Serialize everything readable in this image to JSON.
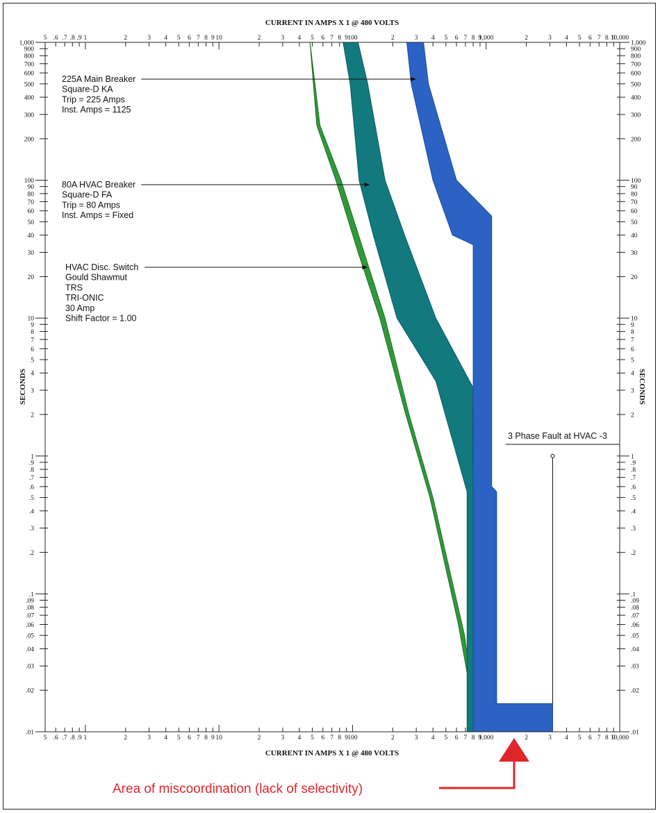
{
  "chart_data": {
    "type": "area",
    "x_axis_title": "CURRENT IN AMPS X 1 @ 480 VOLTS",
    "y_axis_title": "SECONDS",
    "x_scale": "log",
    "y_scale": "log",
    "xlim": [
      0.5,
      10000
    ],
    "ylim": [
      0.01,
      1000
    ],
    "x_tick_labels": [
      {
        "v": 0.5,
        "t": "5"
      },
      {
        "v": 0.6,
        "t": ".6"
      },
      {
        "v": 0.7,
        "t": ".7"
      },
      {
        "v": 0.8,
        "t": ".8"
      },
      {
        "v": 0.9,
        "t": ".9"
      },
      {
        "v": 1,
        "t": "1"
      },
      {
        "v": 2,
        "t": "2"
      },
      {
        "v": 3,
        "t": "3"
      },
      {
        "v": 4,
        "t": "4"
      },
      {
        "v": 5,
        "t": "5"
      },
      {
        "v": 6,
        "t": "6"
      },
      {
        "v": 7,
        "t": "7"
      },
      {
        "v": 8,
        "t": "8"
      },
      {
        "v": 9,
        "t": "9"
      },
      {
        "v": 10,
        "t": "10"
      },
      {
        "v": 20,
        "t": "2"
      },
      {
        "v": 30,
        "t": "3"
      },
      {
        "v": 40,
        "t": "4"
      },
      {
        "v": 50,
        "t": "5"
      },
      {
        "v": 60,
        "t": "6"
      },
      {
        "v": 70,
        "t": "7"
      },
      {
        "v": 80,
        "t": "8"
      },
      {
        "v": 90,
        "t": "9"
      },
      {
        "v": 100,
        "t": "100"
      },
      {
        "v": 200,
        "t": "2"
      },
      {
        "v": 300,
        "t": "3"
      },
      {
        "v": 400,
        "t": "4"
      },
      {
        "v": 500,
        "t": "5"
      },
      {
        "v": 600,
        "t": "6"
      },
      {
        "v": 700,
        "t": "7"
      },
      {
        "v": 800,
        "t": "8"
      },
      {
        "v": 900,
        "t": "9"
      },
      {
        "v": 1000,
        "t": "1,000"
      },
      {
        "v": 2000,
        "t": "2"
      },
      {
        "v": 3000,
        "t": "3"
      },
      {
        "v": 4000,
        "t": "4"
      },
      {
        "v": 5000,
        "t": "5"
      },
      {
        "v": 6000,
        "t": "6"
      },
      {
        "v": 7000,
        "t": "7"
      },
      {
        "v": 8000,
        "t": "8"
      },
      {
        "v": 9000,
        "t": "9"
      },
      {
        "v": 10000,
        "t": "10,000"
      }
    ],
    "y_tick_labels": [
      {
        "v": 1000,
        "t": "1,000"
      },
      {
        "v": 900,
        "t": "900"
      },
      {
        "v": 800,
        "t": "800"
      },
      {
        "v": 700,
        "t": "700"
      },
      {
        "v": 600,
        "t": "600"
      },
      {
        "v": 500,
        "t": "500"
      },
      {
        "v": 400,
        "t": "400"
      },
      {
        "v": 300,
        "t": "300"
      },
      {
        "v": 200,
        "t": "200"
      },
      {
        "v": 100,
        "t": "100"
      },
      {
        "v": 90,
        "t": "90"
      },
      {
        "v": 80,
        "t": "80"
      },
      {
        "v": 70,
        "t": "70"
      },
      {
        "v": 60,
        "t": "60"
      },
      {
        "v": 50,
        "t": "50"
      },
      {
        "v": 40,
        "t": "40"
      },
      {
        "v": 30,
        "t": "30"
      },
      {
        "v": 20,
        "t": "20"
      },
      {
        "v": 10,
        "t": "10"
      },
      {
        "v": 9,
        "t": "9"
      },
      {
        "v": 8,
        "t": "8"
      },
      {
        "v": 7,
        "t": "7"
      },
      {
        "v": 6,
        "t": "6"
      },
      {
        "v": 5,
        "t": "5"
      },
      {
        "v": 4,
        "t": "4"
      },
      {
        "v": 3,
        "t": "3"
      },
      {
        "v": 2,
        "t": "2"
      },
      {
        "v": 1,
        "t": "1"
      },
      {
        "v": 0.9,
        "t": ".9"
      },
      {
        "v": 0.8,
        "t": ".8"
      },
      {
        "v": 0.7,
        "t": ".7"
      },
      {
        "v": 0.6,
        "t": ".6"
      },
      {
        "v": 0.5,
        "t": ".5"
      },
      {
        "v": 0.4,
        "t": ".4"
      },
      {
        "v": 0.3,
        "t": ".3"
      },
      {
        "v": 0.2,
        "t": ".2"
      },
      {
        "v": 0.1,
        "t": ".1"
      },
      {
        "v": 0.09,
        "t": ".09"
      },
      {
        "v": 0.08,
        "t": ".08"
      },
      {
        "v": 0.07,
        "t": ".07"
      },
      {
        "v": 0.06,
        "t": ".06"
      },
      {
        "v": 0.05,
        "t": ".05"
      },
      {
        "v": 0.04,
        "t": ".04"
      },
      {
        "v": 0.03,
        "t": ".03"
      },
      {
        "v": 0.02,
        "t": ".02"
      },
      {
        "v": 0.01,
        "t": ".01"
      }
    ],
    "series": [
      {
        "color": "#2f9a3a",
        "stroke": "#1f6b25",
        "min_curve": [
          [
            48,
            1000
          ],
          [
            54,
            250
          ],
          [
            75,
            100
          ],
          [
            110,
            30
          ],
          [
            160,
            10
          ],
          [
            250,
            2
          ],
          [
            380,
            0.5
          ],
          [
            620,
            0.06
          ],
          [
            730,
            0.025
          ],
          [
            800,
            0.01
          ]
        ],
        "max_curve": [
          [
            48,
            1000
          ],
          [
            57,
            250
          ],
          [
            82,
            100
          ],
          [
            122,
            30
          ],
          [
            175,
            10
          ],
          [
            265,
            2
          ],
          [
            400,
            0.5
          ],
          [
            690,
            0.05
          ],
          [
            780,
            0.02
          ],
          [
            820,
            0.01
          ]
        ]
      },
      {
        "color": "#127a7e",
        "stroke": "#0b5a5e",
        "min_curve": [
          [
            85,
            1000
          ],
          [
            96,
            500
          ],
          [
            112,
            100
          ],
          [
            143,
            40
          ],
          [
            215,
            10
          ],
          [
            420,
            3.5
          ],
          [
            720,
            0.55
          ],
          [
            720,
            0.01
          ]
        ],
        "max_curve": [
          [
            110,
            1000
          ],
          [
            130,
            500
          ],
          [
            175,
            100
          ],
          [
            245,
            40
          ],
          [
            420,
            10
          ],
          [
            790,
            3.2
          ],
          [
            800,
            0.55
          ],
          [
            800,
            0.01
          ]
        ]
      },
      {
        "color": "#2c62c4",
        "stroke": "#1b4aa0",
        "min_curve": [
          [
            255,
            1000
          ],
          [
            275,
            500
          ],
          [
            400,
            100
          ],
          [
            560,
            40
          ],
          [
            800,
            34
          ],
          [
            800,
            0.01
          ]
        ],
        "max_curve": [
          [
            340,
            1000
          ],
          [
            370,
            500
          ],
          [
            600,
            100
          ],
          [
            1100,
            55
          ],
          [
            1100,
            0.6
          ],
          [
            1200,
            0.55
          ],
          [
            1200,
            0.016
          ],
          [
            3150,
            0.016
          ],
          [
            3150,
            0.01
          ]
        ]
      }
    ],
    "annotations": [
      {
        "lines": [
          "225A Main Breaker",
          "Square-D KA",
          "Trip = 225 Amps",
          "Inst. Amps =   1125"
        ],
        "arrow_to": [
          300,
          530
        ]
      },
      {
        "lines": [
          "80A  HVAC Breaker",
          "Square-D FA",
          "Trip = 80 Amps",
          "Inst. Amps =  Fixed"
        ],
        "arrow_to": [
          135,
          93
        ]
      },
      {
        "lines": [
          "HVAC Disc. Switch",
          "Gould Shawmut",
          "TRS",
          "TRI-ONIC",
          "30 Amp",
          "Shift Factor = 1.00"
        ],
        "arrow_to": [
          130,
          22
        ]
      }
    ],
    "fault_label": "3 Phase Fault at HVAC -3",
    "fault_current": 3150,
    "fault_marker_time": 1.0
  },
  "callout": {
    "text": "Area of miscoordination (lack of selectivity)",
    "color": "#e0262b"
  }
}
